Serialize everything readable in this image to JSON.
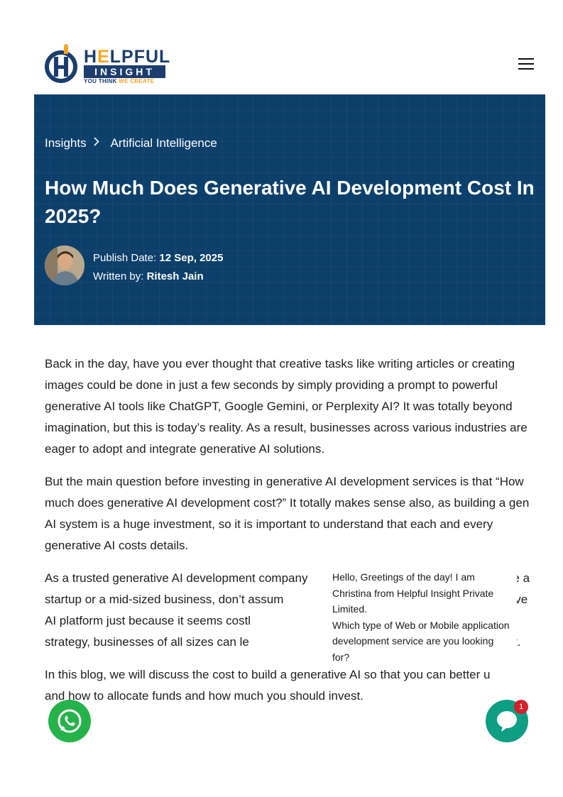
{
  "header": {
    "logo": {
      "word_main": "H",
      "word_accent": "E",
      "word_rest": "LPFUL",
      "bar_text": "INSIGHT",
      "tagline_1": "YOU THINK",
      "tagline_2": "WE CREATE"
    },
    "menu_icon": "hamburger-icon"
  },
  "hero": {
    "breadcrumb": [
      {
        "label": "Insights"
      },
      {
        "label": "Artificial Intelligence"
      }
    ],
    "breadcrumb_separator": "chevron-right-icon",
    "title": "How Much Does Generative AI Development Cost In 2025?",
    "publish_label": "Publish Date:",
    "publish_date": "12 Sep, 2025",
    "author_label": "Written by:",
    "author_name": "Ritesh Jain",
    "background_color": "#0d3f6b"
  },
  "article": {
    "paragraphs": [
      "Back in the day, have you ever thought that creative tasks like writing articles or creating images could be done in just a few seconds by simply providing a prompt to powerful generative AI tools like ChatGPT, Google Gemini, or Perplexity AI? It was totally beyond imagination, but this is today’s reality. As a result, businesses across various industries are eager to adopt and integrate generative AI solutions.",
      "But the main question before investing in generative AI development services is that “How much does generative AI development cost?” It totally makes sense also, as building a gen AI system is a huge investment, so it is important to understand that each and every generative AI costs details.",
      "As a trusted generative AI development company                                                       u are a startup or a mid-sized business, don’t assum                                                        generative AI platform just because it seems costl                                                          thought-out strategy, businesses of all sizes can le                                                          n their budget.",
      "In this blog, we will discuss the cost to build a generative AI so that you can better u        and how to allocate funds and how much you should invest."
    ]
  },
  "chat_popup": {
    "message_1": "Hello, Greetings of the day! I am Christina from Helpful Insight Private Limited.",
    "message_2": "Which type of Web or Mobile application development service are you looking for?"
  },
  "floating": {
    "whatsapp_icon": "whatsapp-icon",
    "chat_icon": "chat-bubble-icon",
    "chat_badge": "1",
    "whatsapp_color": "#25b24a",
    "chat_color": "#0e9e84"
  }
}
